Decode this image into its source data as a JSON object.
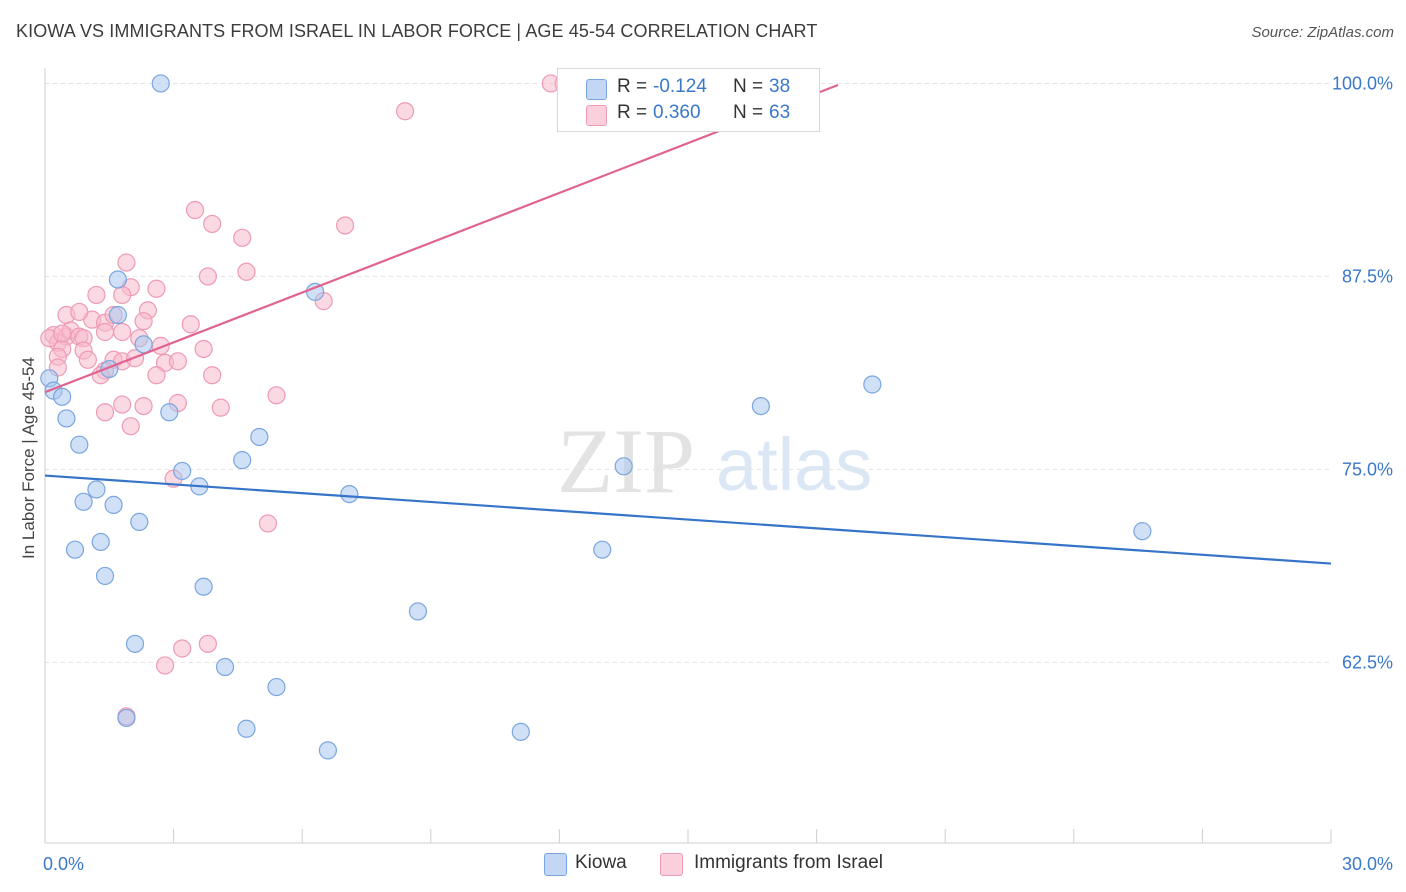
{
  "header": {
    "title": "KIOWA VS IMMIGRANTS FROM ISRAEL IN LABOR FORCE | AGE 45-54 CORRELATION CHART",
    "source": "Source: ZipAtlas.com"
  },
  "colors": {
    "kiowa_fill": "#a9c6ef",
    "kiowa_stroke": "#7aa6df",
    "kiowa_line": "#3574c8",
    "israel_fill": "#f7b9cc",
    "israel_stroke": "#ee9ab5",
    "israel_line": "#e0648f",
    "tick_label": "#3a78c9",
    "grid": "#e3e3e3"
  },
  "legend": {
    "rows": [
      {
        "r_label": "R =",
        "r_value": "-0.124",
        "n_label": "N =",
        "n_value": "38"
      },
      {
        "r_label": "R =",
        "r_value": "0.360",
        "n_label": "N =",
        "n_value": "63"
      }
    ]
  },
  "bottom_legend": {
    "kiowa": "Kiowa",
    "israel": "Immigrants from Israel"
  },
  "watermark": {
    "zip": "ZIP",
    "atlas": "atlas"
  },
  "chart_data": {
    "type": "scatter",
    "title": "KIOWA VS IMMIGRANTS FROM ISRAEL IN LABOR FORCE | AGE 45-54 CORRELATION CHART",
    "xlabel": "",
    "ylabel": "In Labor Force | Age 45-54",
    "xlim": [
      0,
      30
    ],
    "ylim": [
      50.8,
      101
    ],
    "x_tick_labels": [
      "0.0%",
      "30.0%"
    ],
    "y_ticks": [
      100,
      87.5,
      75,
      62.5
    ],
    "y_tick_labels": [
      "100.0%",
      "87.5%",
      "75.0%",
      "62.5%"
    ],
    "grid": "horizontal dashed",
    "legend_placement": "top-center",
    "series": [
      {
        "name": "Kiowa",
        "r": -0.124,
        "n": 38,
        "trend": {
          "x": [
            0,
            30
          ],
          "y": [
            74.6,
            68.9
          ]
        },
        "points": [
          [
            2.7,
            100.0
          ],
          [
            1.7,
            87.3
          ],
          [
            6.3,
            86.5
          ],
          [
            1.7,
            85.0
          ],
          [
            2.3,
            83.1
          ],
          [
            1.5,
            81.5
          ],
          [
            0.1,
            80.9
          ],
          [
            0.2,
            80.1
          ],
          [
            0.4,
            79.7
          ],
          [
            0.5,
            78.3
          ],
          [
            2.9,
            78.7
          ],
          [
            0.8,
            76.6
          ],
          [
            5.0,
            77.1
          ],
          [
            4.6,
            75.6
          ],
          [
            3.2,
            74.9
          ],
          [
            3.6,
            73.9
          ],
          [
            1.2,
            73.7
          ],
          [
            7.1,
            73.4
          ],
          [
            0.9,
            72.9
          ],
          [
            1.6,
            72.7
          ],
          [
            2.2,
            71.6
          ],
          [
            0.7,
            69.8
          ],
          [
            1.3,
            70.3
          ],
          [
            1.4,
            68.1
          ],
          [
            3.7,
            67.4
          ],
          [
            8.7,
            65.8
          ],
          [
            13.5,
            75.2
          ],
          [
            13.0,
            69.8
          ],
          [
            16.7,
            79.1
          ],
          [
            19.3,
            80.5
          ],
          [
            25.6,
            71.0
          ],
          [
            2.1,
            63.7
          ],
          [
            4.2,
            62.2
          ],
          [
            5.4,
            60.9
          ],
          [
            1.9,
            58.9
          ],
          [
            4.7,
            58.2
          ],
          [
            6.6,
            56.8
          ],
          [
            11.1,
            58.0
          ]
        ]
      },
      {
        "name": "Immigrants from Israel",
        "r": 0.36,
        "n": 63,
        "trend": {
          "x": [
            0,
            18.5
          ],
          "y": [
            80.0,
            99.9
          ]
        },
        "points": [
          [
            11.8,
            100.0
          ],
          [
            12.1,
            100.0
          ],
          [
            8.4,
            98.2
          ],
          [
            3.5,
            91.8
          ],
          [
            3.9,
            90.9
          ],
          [
            4.6,
            90.0
          ],
          [
            7.0,
            90.8
          ],
          [
            1.9,
            88.4
          ],
          [
            4.7,
            87.8
          ],
          [
            3.8,
            87.5
          ],
          [
            2.0,
            86.8
          ],
          [
            2.6,
            86.7
          ],
          [
            1.2,
            86.3
          ],
          [
            1.8,
            86.3
          ],
          [
            6.5,
            85.9
          ],
          [
            0.5,
            85.0
          ],
          [
            1.1,
            84.7
          ],
          [
            0.8,
            85.2
          ],
          [
            2.4,
            85.3
          ],
          [
            2.3,
            84.6
          ],
          [
            1.4,
            84.5
          ],
          [
            3.4,
            84.4
          ],
          [
            0.2,
            83.7
          ],
          [
            0.5,
            83.6
          ],
          [
            0.6,
            84.0
          ],
          [
            0.8,
            83.6
          ],
          [
            1.8,
            83.9
          ],
          [
            0.9,
            83.5
          ],
          [
            2.2,
            83.5
          ],
          [
            0.3,
            83.2
          ],
          [
            0.4,
            82.8
          ],
          [
            0.9,
            82.7
          ],
          [
            2.7,
            83.0
          ],
          [
            3.7,
            82.8
          ],
          [
            0.3,
            82.3
          ],
          [
            1.0,
            82.1
          ],
          [
            1.6,
            82.1
          ],
          [
            1.8,
            82.0
          ],
          [
            2.1,
            82.2
          ],
          [
            2.8,
            81.9
          ],
          [
            0.3,
            81.6
          ],
          [
            1.4,
            81.4
          ],
          [
            1.3,
            81.1
          ],
          [
            2.6,
            81.1
          ],
          [
            3.9,
            81.1
          ],
          [
            1.8,
            79.2
          ],
          [
            2.3,
            79.1
          ],
          [
            3.1,
            79.3
          ],
          [
            4.1,
            79.0
          ],
          [
            5.4,
            79.8
          ],
          [
            1.4,
            78.7
          ],
          [
            2.0,
            77.8
          ],
          [
            3.0,
            74.4
          ],
          [
            5.2,
            71.5
          ],
          [
            3.2,
            63.4
          ],
          [
            3.8,
            63.7
          ],
          [
            2.8,
            62.3
          ],
          [
            1.9,
            59.0
          ],
          [
            0.1,
            83.5
          ],
          [
            0.4,
            83.8
          ],
          [
            1.6,
            85.0
          ],
          [
            3.1,
            82.0
          ],
          [
            1.4,
            83.9
          ]
        ]
      }
    ]
  }
}
